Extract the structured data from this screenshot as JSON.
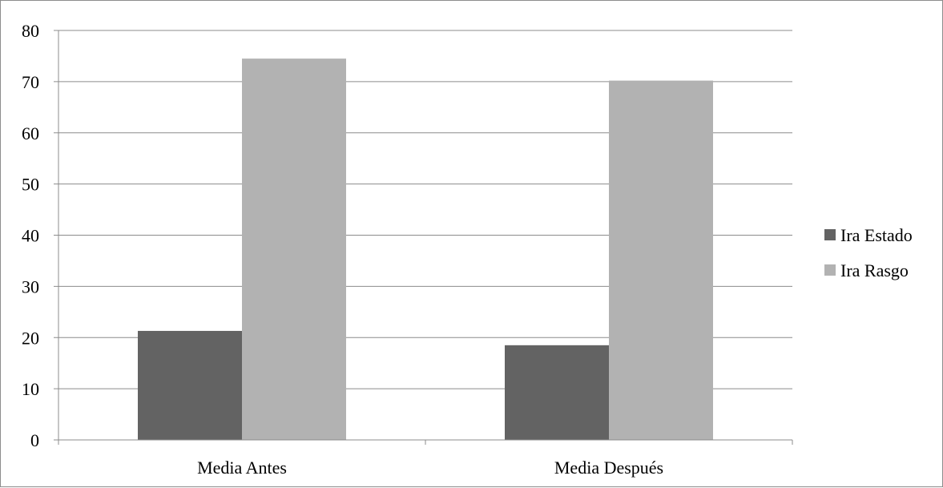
{
  "chart_data": {
    "type": "bar",
    "title": "",
    "xlabel": "",
    "ylabel": "",
    "categories": [
      "Media Antes",
      "Media Después"
    ],
    "series": [
      {
        "name": "Ira Estado",
        "values": [
          21.3,
          18.5
        ],
        "color": "#636363"
      },
      {
        "name": "Ira Rasgo",
        "values": [
          74.5,
          70.2
        ],
        "color": "#b2b2b2"
      }
    ],
    "ylim": [
      0,
      80
    ],
    "yticks": [
      "0",
      "10",
      "20",
      "30",
      "40",
      "50",
      "60",
      "70",
      "80"
    ],
    "grid": true,
    "legend_position": "right"
  }
}
